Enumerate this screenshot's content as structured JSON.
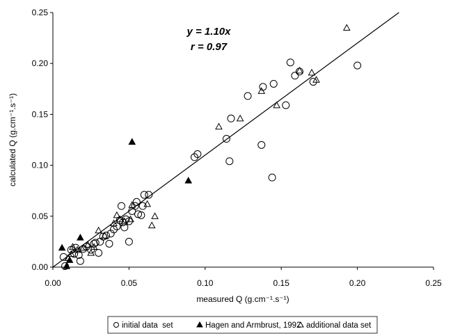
{
  "chart_data": {
    "type": "scatter",
    "xlabel": "measured Q (g.cm⁻¹.s⁻¹)",
    "ylabel": "calculated Q (g.cm⁻¹.s⁻¹)",
    "xlim": [
      0,
      0.25
    ],
    "ylim": [
      0,
      0.25
    ],
    "x_ticks": [
      "0.00",
      "0.05",
      "0.10",
      "0.15",
      "0.20",
      "0.25"
    ],
    "y_ticks": [
      "0.00",
      "0.05",
      "0.10",
      "0.15",
      "0.20",
      "0.25"
    ],
    "grid": false,
    "legend_position": "bottom",
    "annotations": [
      "y = 1.10x",
      "r = 0.97"
    ],
    "fit_line": {
      "slope": 1.1,
      "x_range": [
        0,
        0.2273
      ]
    },
    "series": [
      {
        "name": "initial data  set",
        "marker": "open-circle",
        "points": [
          [
            0.007,
            0.01
          ],
          [
            0.008,
            0.001
          ],
          [
            0.012,
            0.017
          ],
          [
            0.014,
            0.013
          ],
          [
            0.015,
            0.019
          ],
          [
            0.017,
            0.012
          ],
          [
            0.018,
            0.006
          ],
          [
            0.02,
            0.018
          ],
          [
            0.022,
            0.02
          ],
          [
            0.025,
            0.017
          ],
          [
            0.027,
            0.023
          ],
          [
            0.028,
            0.024
          ],
          [
            0.03,
            0.014
          ],
          [
            0.031,
            0.025
          ],
          [
            0.033,
            0.03
          ],
          [
            0.035,
            0.031
          ],
          [
            0.037,
            0.023
          ],
          [
            0.038,
            0.033
          ],
          [
            0.04,
            0.037
          ],
          [
            0.042,
            0.04
          ],
          [
            0.044,
            0.046
          ],
          [
            0.045,
            0.06
          ],
          [
            0.046,
            0.044
          ],
          [
            0.047,
            0.039
          ],
          [
            0.048,
            0.047
          ],
          [
            0.05,
            0.025
          ],
          [
            0.05,
            0.045
          ],
          [
            0.052,
            0.055
          ],
          [
            0.054,
            0.06
          ],
          [
            0.055,
            0.064
          ],
          [
            0.056,
            0.052
          ],
          [
            0.058,
            0.051
          ],
          [
            0.059,
            0.06
          ],
          [
            0.06,
            0.071
          ],
          [
            0.063,
            0.071
          ],
          [
            0.093,
            0.108
          ],
          [
            0.095,
            0.111
          ],
          [
            0.114,
            0.126
          ],
          [
            0.116,
            0.104
          ],
          [
            0.117,
            0.146
          ],
          [
            0.128,
            0.168
          ],
          [
            0.137,
            0.12
          ],
          [
            0.138,
            0.177
          ],
          [
            0.144,
            0.088
          ],
          [
            0.145,
            0.18
          ],
          [
            0.153,
            0.159
          ],
          [
            0.156,
            0.201
          ],
          [
            0.159,
            0.188
          ],
          [
            0.162,
            0.192
          ],
          [
            0.171,
            0.182
          ],
          [
            0.2,
            0.198
          ]
        ]
      },
      {
        "name": "Hagen and Armbrust, 1992",
        "marker": "filled-triangle",
        "points": [
          [
            0.006,
            0.019
          ],
          [
            0.009,
            0.001
          ],
          [
            0.011,
            0.007
          ],
          [
            0.018,
            0.029
          ],
          [
            0.052,
            0.123
          ],
          [
            0.089,
            0.085
          ]
        ]
      },
      {
        "name": "additional data set",
        "marker": "open-triangle",
        "points": [
          [
            0.01,
            0.009
          ],
          [
            0.012,
            0.013
          ],
          [
            0.013,
            0.02
          ],
          [
            0.016,
            0.017
          ],
          [
            0.02,
            0.019
          ],
          [
            0.023,
            0.022
          ],
          [
            0.025,
            0.014
          ],
          [
            0.027,
            0.02
          ],
          [
            0.03,
            0.036
          ],
          [
            0.034,
            0.031
          ],
          [
            0.04,
            0.043
          ],
          [
            0.042,
            0.051
          ],
          [
            0.044,
            0.047
          ],
          [
            0.047,
            0.045
          ],
          [
            0.051,
            0.047
          ],
          [
            0.052,
            0.061
          ],
          [
            0.062,
            0.062
          ],
          [
            0.065,
            0.041
          ],
          [
            0.067,
            0.05
          ],
          [
            0.109,
            0.138
          ],
          [
            0.123,
            0.146
          ],
          [
            0.137,
            0.173
          ],
          [
            0.147,
            0.159
          ],
          [
            0.162,
            0.193
          ],
          [
            0.17,
            0.191
          ],
          [
            0.173,
            0.184
          ],
          [
            0.193,
            0.235
          ]
        ]
      }
    ]
  }
}
